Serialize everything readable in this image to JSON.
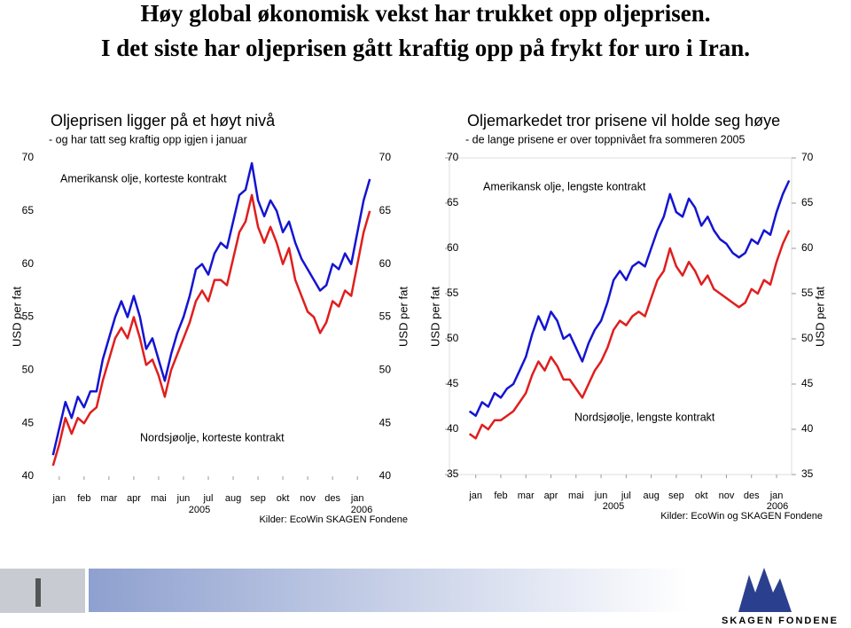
{
  "slide_title": [
    "Høy global økonomisk vekst har trukket opp oljeprisen.",
    "I det siste har oljeprisen gått kraftig opp på frykt for uro i Iran."
  ],
  "chart_data": [
    {
      "type": "line",
      "title": "Oljeprisen ligger på et høyt nivå",
      "subtitle": "- og har tatt seg kraftig opp igjen i januar",
      "y_label": "USD per fat",
      "source": "Kilder: EcoWin SKAGEN Fondene",
      "year_labels": [
        "2005",
        "2006"
      ],
      "xlim": [
        -0.6,
        12.6
      ],
      "xticks": [
        {
          "value": 0,
          "label": "jan"
        },
        {
          "value": 1,
          "label": "feb"
        },
        {
          "value": 2,
          "label": "mar"
        },
        {
          "value": 3,
          "label": "apr"
        },
        {
          "value": 4,
          "label": "mai"
        },
        {
          "value": 5,
          "label": "jun"
        },
        {
          "value": 6,
          "label": "jul"
        },
        {
          "value": 7,
          "label": "aug"
        },
        {
          "value": 8,
          "label": "sep"
        },
        {
          "value": 9,
          "label": "okt"
        },
        {
          "value": 10,
          "label": "nov"
        },
        {
          "value": 11,
          "label": "des"
        },
        {
          "value": 12,
          "label": "jan"
        }
      ],
      "ylim": [
        40,
        70
      ],
      "yticks": [
        40,
        45,
        50,
        55,
        60,
        65,
        70
      ],
      "x": [
        -0.25,
        0,
        0.25,
        0.5,
        0.75,
        1,
        1.25,
        1.5,
        1.75,
        2,
        2.25,
        2.5,
        2.75,
        3,
        3.25,
        3.5,
        3.75,
        4,
        4.25,
        4.5,
        4.75,
        5,
        5.25,
        5.5,
        5.75,
        6,
        6.25,
        6.5,
        6.75,
        7,
        7.25,
        7.5,
        7.75,
        8,
        8.25,
        8.5,
        8.75,
        9,
        9.25,
        9.5,
        9.75,
        10,
        10.25,
        10.5,
        10.75,
        11,
        11.25,
        11.5,
        11.75,
        12,
        12.25,
        12.5
      ],
      "series": [
        {
          "name": "Amerikansk olje, korteste kontrakt",
          "color": "#1414d2",
          "values": [
            42,
            44.5,
            47,
            45.5,
            47.5,
            46.5,
            48,
            48,
            51,
            53,
            55,
            56.5,
            55,
            57,
            55,
            52,
            53,
            51,
            49,
            51.5,
            53.5,
            55,
            57,
            59.5,
            60,
            59,
            61,
            62,
            61.5,
            64,
            66.5,
            67,
            69.5,
            66,
            64.5,
            66,
            65,
            63,
            64,
            62,
            60.5,
            59.5,
            58.5,
            57.5,
            58,
            60,
            59.5,
            61,
            60,
            63,
            66,
            68
          ]
        },
        {
          "name": "Nordsjøolje, korteste kontrakt",
          "color": "#e01e1e",
          "values": [
            41,
            43,
            45.5,
            44,
            45.5,
            45,
            46,
            46.5,
            49,
            51,
            53,
            54,
            53,
            55,
            53,
            50.5,
            51,
            49.5,
            47.5,
            50,
            51.5,
            53,
            54.5,
            56.5,
            57.5,
            56.5,
            58.5,
            58.5,
            58,
            60.5,
            63,
            64,
            66.5,
            63.5,
            62,
            63.5,
            62,
            60,
            61.5,
            58.5,
            57,
            55.5,
            55,
            53.5,
            54.5,
            56.5,
            56,
            57.5,
            57,
            60,
            63,
            65
          ]
        }
      ]
    },
    {
      "type": "line",
      "title": "Oljemarkedet tror prisene vil holde seg høye",
      "subtitle": "- de lange prisene er over toppnivået fra sommeren 2005",
      "y_label": "USD per fat",
      "source": "Kilder: EcoWin og SKAGEN Fondene",
      "year_labels": [
        "2005",
        "2006"
      ],
      "xlim": [
        -1.05,
        12.6
      ],
      "xticks": [
        {
          "value": 0,
          "label": "jan"
        },
        {
          "value": 1,
          "label": "feb"
        },
        {
          "value": 2,
          "label": "mar"
        },
        {
          "value": 3,
          "label": "apr"
        },
        {
          "value": 4,
          "label": "mai"
        },
        {
          "value": 5,
          "label": "jun"
        },
        {
          "value": 6,
          "label": "jul"
        },
        {
          "value": 7,
          "label": "aug"
        },
        {
          "value": 8,
          "label": "sep"
        },
        {
          "value": 9,
          "label": "okt"
        },
        {
          "value": 10,
          "label": "nov"
        },
        {
          "value": 11,
          "label": "des"
        },
        {
          "value": 12,
          "label": "jan"
        }
      ],
      "ylim": [
        35,
        70
      ],
      "yticks": [
        35,
        40,
        45,
        50,
        55,
        60,
        65,
        70
      ],
      "x": [
        -0.25,
        0,
        0.25,
        0.5,
        0.75,
        1,
        1.25,
        1.5,
        1.75,
        2,
        2.25,
        2.5,
        2.75,
        3,
        3.25,
        3.5,
        3.75,
        4,
        4.25,
        4.5,
        4.75,
        5,
        5.25,
        5.5,
        5.75,
        6,
        6.25,
        6.5,
        6.75,
        7,
        7.25,
        7.5,
        7.75,
        8,
        8.25,
        8.5,
        8.75,
        9,
        9.25,
        9.5,
        9.75,
        10,
        10.25,
        10.5,
        10.75,
        11,
        11.25,
        11.5,
        11.75,
        12,
        12.25,
        12.5
      ],
      "series": [
        {
          "name": "Amerikansk olje, lengste kontrakt",
          "color": "#1414d2",
          "values": [
            42,
            41.5,
            43,
            42.5,
            44,
            43.5,
            44.5,
            45,
            46.5,
            48,
            50.5,
            52.5,
            51,
            53,
            52,
            50,
            50.5,
            49,
            47.5,
            49.5,
            51,
            52,
            54,
            56.5,
            57.5,
            56.5,
            58,
            58.5,
            58,
            60,
            62,
            63.5,
            66,
            64,
            63.5,
            65.5,
            64.5,
            62.5,
            63.5,
            62,
            61,
            60.5,
            59.5,
            59,
            59.5,
            61,
            60.5,
            62,
            61.5,
            64,
            66,
            67.5
          ]
        },
        {
          "name": "Nordsjøolje, lengste kontrakt",
          "color": "#e01e1e",
          "values": [
            39.5,
            39,
            40.5,
            40,
            41,
            41,
            41.5,
            42,
            43,
            44,
            46,
            47.5,
            46.5,
            48,
            47,
            45.5,
            45.5,
            44.5,
            43.5,
            45,
            46.5,
            47.5,
            49,
            51,
            52,
            51.5,
            52.5,
            53,
            52.5,
            54.5,
            56.5,
            57.5,
            60,
            58,
            57,
            58.5,
            57.5,
            56,
            57,
            55.5,
            55,
            54.5,
            54,
            53.5,
            54,
            55.5,
            55,
            56.5,
            56,
            58.5,
            60.5,
            62
          ]
        }
      ]
    }
  ],
  "footer": {
    "logo_text": "SKAGEN FONDENE"
  }
}
